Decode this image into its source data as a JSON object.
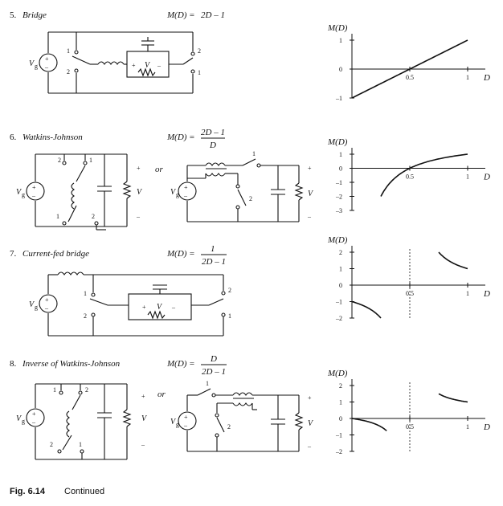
{
  "figure": {
    "caption_label": "Fig. 6.14",
    "caption_text": "Continued"
  },
  "symbols": {
    "vg": "V",
    "vg_sub": "g",
    "v": "V",
    "plus": "+",
    "minus": "–",
    "or": "or",
    "n1": "1",
    "n2": "2"
  },
  "converters": [
    {
      "number": "5.",
      "name": "Bridge",
      "gain_lhs": "M(D) =",
      "gain_num": "2D – 1",
      "gain_den": ""
    },
    {
      "number": "6.",
      "name": "Watkins-Johnson",
      "gain_lhs": "M(D) =",
      "gain_num": "2D – 1",
      "gain_den": "D"
    },
    {
      "number": "7.",
      "name": "Current-fed bridge",
      "gain_lhs": "M(D) =",
      "gain_num": "1",
      "gain_den": "2D – 1"
    },
    {
      "number": "8.",
      "name": "Inverse of Watkins-Johnson",
      "gain_lhs": "M(D) =",
      "gain_num": "D",
      "gain_den": "2D – 1"
    }
  ],
  "chart_data": [
    {
      "type": "line",
      "ylabel": "M(D)",
      "xlabel": "D",
      "xlim": [
        0,
        1
      ],
      "ylim": [
        -1,
        1
      ],
      "yticks": [
        "1",
        "0",
        "–1"
      ],
      "xticks": [
        "0.5",
        "1"
      ],
      "formula": "2D-1",
      "domain": [
        0,
        1
      ],
      "x": [
        0,
        0.25,
        0.5,
        0.75,
        1
      ],
      "y": [
        -1,
        -0.5,
        0,
        0.5,
        1
      ]
    },
    {
      "type": "line",
      "ylabel": "M(D)",
      "xlabel": "D",
      "xlim": [
        0,
        1
      ],
      "ylim": [
        -3,
        1
      ],
      "yticks": [
        "1",
        "0",
        "–1",
        "–2",
        "–3"
      ],
      "xticks": [
        "0.5",
        "1"
      ],
      "formula": "(2D-1)/D",
      "domain": [
        0.25,
        1
      ],
      "x": [
        0.25,
        0.333,
        0.5,
        0.75,
        1
      ],
      "y": [
        -2,
        -1,
        0,
        0.667,
        1
      ]
    },
    {
      "type": "line",
      "ylabel": "M(D)",
      "xlabel": "D",
      "xlim": [
        0,
        1
      ],
      "ylim": [
        -2,
        2
      ],
      "yticks": [
        "2",
        "1",
        "0",
        "–1",
        "–2"
      ],
      "xticks": [
        "0.5",
        "1"
      ],
      "formula": "1/(2D-1)",
      "branches": [
        [
          0,
          0.25
        ],
        [
          0.75,
          1
        ]
      ],
      "x": [
        0,
        0.125,
        0.25,
        0.75,
        0.875,
        1
      ],
      "y": [
        -1,
        -1.333,
        -2,
        2,
        1.333,
        1
      ],
      "dashed_x": 0.5
    },
    {
      "type": "line",
      "ylabel": "M(D)",
      "xlabel": "D",
      "xlim": [
        0,
        1
      ],
      "ylim": [
        -2,
        2
      ],
      "yticks": [
        "2",
        "1",
        "0",
        "–1",
        "–2"
      ],
      "xticks": [
        "0.5",
        "1"
      ],
      "formula": "D/(2D-1)",
      "branches": [
        [
          0,
          0.3
        ],
        [
          0.75,
          1
        ]
      ],
      "x": [
        0,
        0.15,
        0.3,
        0.75,
        0.875,
        1
      ],
      "y": [
        0,
        -0.214,
        -0.75,
        1.5,
        1.167,
        1
      ],
      "dashed_x": 0.5
    }
  ]
}
